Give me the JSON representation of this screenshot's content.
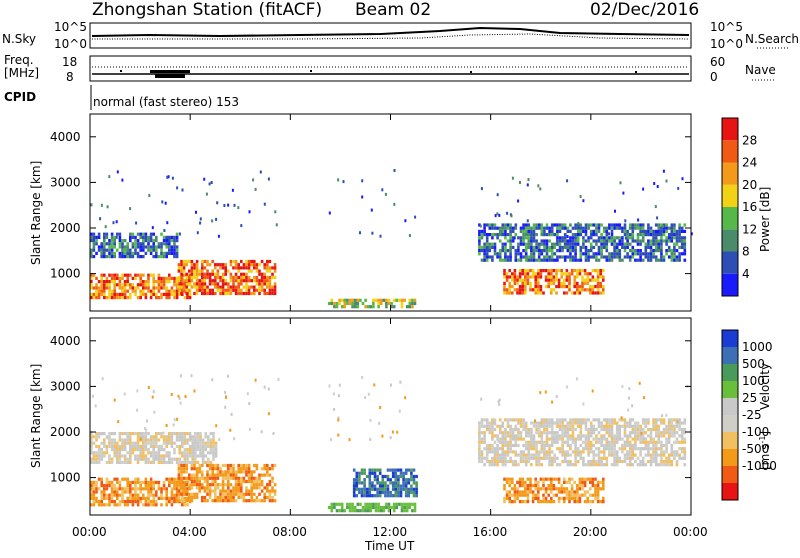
{
  "header": {
    "station": "Zhongshan Station (fitACF)",
    "beam": "Beam 02",
    "date": "02/Dec/2016"
  },
  "noise_panel": {
    "left_label": "N.Sky",
    "right_label": "N.Search",
    "left_ticks": [
      "10^5",
      "10^0"
    ],
    "right_ticks": [
      "10^5",
      "10^0"
    ]
  },
  "freq_panel": {
    "left_label_line1": "Freq.",
    "left_label_line2": "[MHz]",
    "right_label": "Nave",
    "left_ticks": [
      "18",
      "8"
    ],
    "right_ticks": [
      "60",
      "0"
    ]
  },
  "cpid": {
    "label": "CPID",
    "text": "normal (fast stereo) 153"
  },
  "time_axis": {
    "label": "Time UT",
    "ticks": [
      "00:00",
      "04:00",
      "08:00",
      "12:00",
      "16:00",
      "20:00",
      "00:00"
    ]
  },
  "range_axis": {
    "label": "Slant Range [km]",
    "ticks": [
      "1000",
      "2000",
      "3000",
      "4000"
    ]
  },
  "colors": {
    "power": [
      "#1a1aff",
      "#2d4fb5",
      "#4a8c6a",
      "#55b848",
      "#f2d215",
      "#f39a1a",
      "#f05a14",
      "#e81414"
    ],
    "velocity": [
      "#e81414",
      "#f05a14",
      "#f39a1a",
      "#f2c060",
      "#cfcfc8",
      "#c8c8c8",
      "#69bf3c",
      "#4a9a5a",
      "#3c6fb4",
      "#1a3cd2"
    ]
  },
  "chart_data": [
    {
      "type": "heatmap",
      "name": "power",
      "xlabel": "Time UT",
      "ylabel": "Slant Range [km]",
      "xlim": [
        "00:00",
        "24:00"
      ],
      "ylim": [
        180,
        4500
      ],
      "colorbar": {
        "label": "Power [dB]",
        "ticks": [
          "4",
          "8",
          "12",
          "16",
          "20",
          "24",
          "28"
        ],
        "range": [
          0,
          30
        ]
      },
      "patches": [
        {
          "t0": 0.0,
          "t1": 4.0,
          "r0": 500,
          "r1": 1000,
          "level": "orange-red"
        },
        {
          "t0": 3.5,
          "t1": 7.4,
          "r0": 550,
          "r1": 1300,
          "level": "red"
        },
        {
          "t0": 0.0,
          "t1": 3.5,
          "r0": 1400,
          "r1": 1900,
          "level": "blue-green"
        },
        {
          "t0": 9.5,
          "t1": 13.0,
          "r0": 250,
          "r1": 450,
          "level": "green-orange"
        },
        {
          "t0": 16.5,
          "t1": 20.5,
          "r0": 600,
          "r1": 1100,
          "level": "orange-red"
        },
        {
          "t0": 15.5,
          "t1": 23.8,
          "r0": 1300,
          "r1": 2100,
          "level": "blue-green"
        }
      ]
    },
    {
      "type": "heatmap",
      "name": "velocity",
      "xlabel": "Time UT",
      "ylabel": "Slant Range [km]",
      "xlim": [
        "00:00",
        "24:00"
      ],
      "ylim": [
        180,
        4500
      ],
      "colorbar": {
        "label": "Velocity [m s^-1]",
        "ticks": [
          "1000",
          "500",
          "100",
          "25",
          "-25",
          "-100",
          "-500",
          "-1000"
        ],
        "range": [
          -1000,
          1000
        ]
      },
      "patches": [
        {
          "t0": 0.0,
          "t1": 4.0,
          "r0": 400,
          "r1": 1000,
          "level": "orange"
        },
        {
          "t0": 3.5,
          "t1": 7.4,
          "r0": 500,
          "r1": 1300,
          "level": "orange"
        },
        {
          "t0": 0.0,
          "t1": 5.0,
          "r0": 1300,
          "r1": 2000,
          "level": "grey"
        },
        {
          "t0": 9.5,
          "t1": 13.0,
          "r0": 250,
          "r1": 450,
          "level": "green"
        },
        {
          "t0": 10.5,
          "t1": 13.0,
          "r0": 600,
          "r1": 1200,
          "level": "blue"
        },
        {
          "t0": 16.5,
          "t1": 20.5,
          "r0": 500,
          "r1": 1000,
          "level": "orange"
        },
        {
          "t0": 15.5,
          "t1": 23.8,
          "r0": 1300,
          "r1": 2300,
          "level": "grey"
        }
      ]
    }
  ]
}
